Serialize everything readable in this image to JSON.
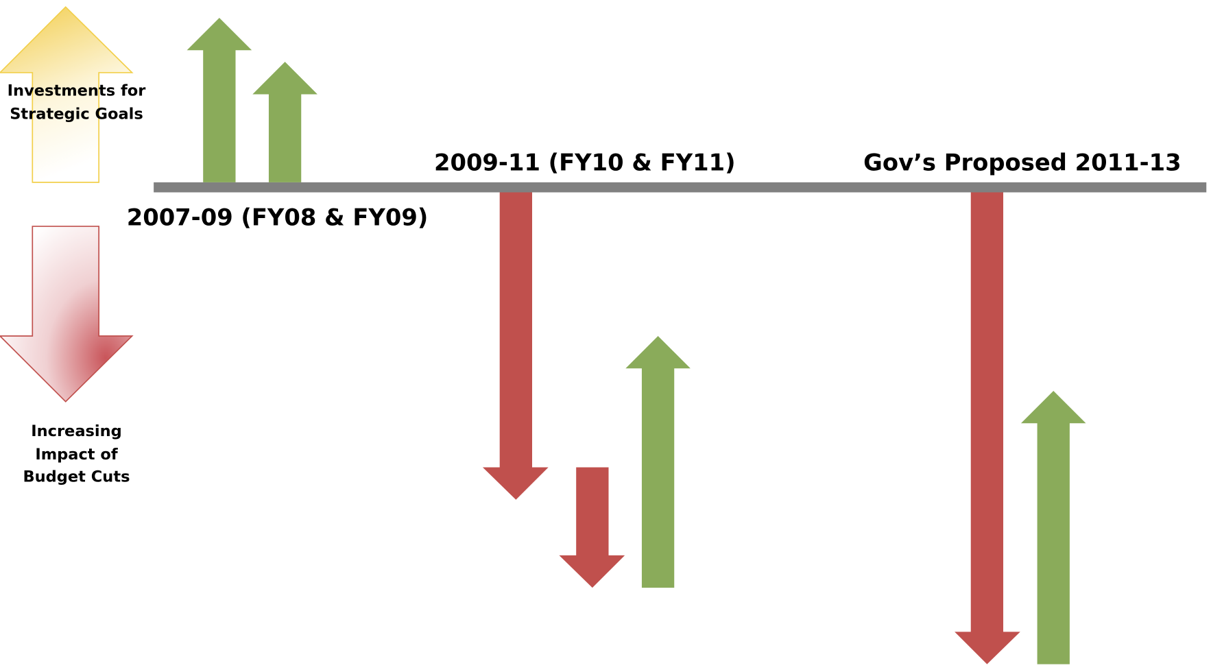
{
  "legend": {
    "investments": [
      "Investments for",
      "Strategic Goals"
    ],
    "cuts": [
      "Increasing",
      "Impact of",
      "Budget Cuts"
    ]
  },
  "periods": [
    "2007-09 (FY08 & FY09)",
    "2009-11 (FY10 & FY11)",
    "Gov’s Proposed 2011-13"
  ]
}
